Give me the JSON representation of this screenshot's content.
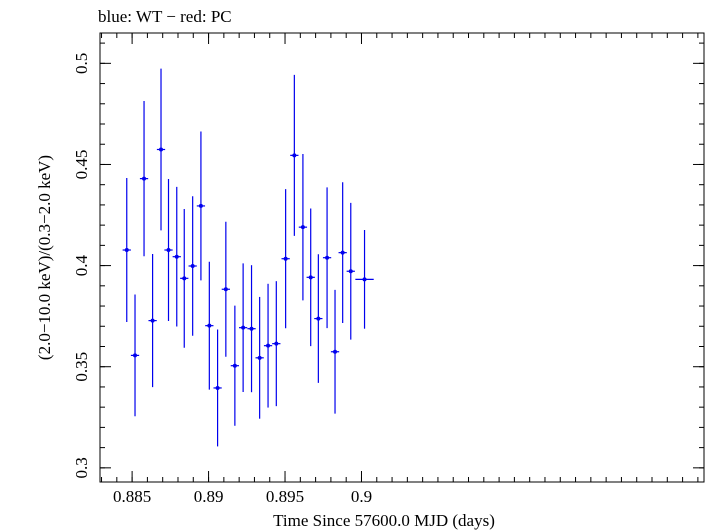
{
  "chart_data": {
    "type": "scatter",
    "title": "blue: WT − red: PC",
    "xlabel": "Time Since 57600.0 MJD (days)",
    "ylabel": "(2.0−10.0 keV)/(0.3−2.0 keV)",
    "xlim": [
      0.8829,
      0.9224
    ],
    "ylim": [
      0.293,
      0.515
    ],
    "xticks": [
      {
        "value": 0.885,
        "label": "0.885"
      },
      {
        "value": 0.89,
        "label": "0.89"
      },
      {
        "value": 0.895,
        "label": "0.895"
      },
      {
        "value": 0.9,
        "label": "0.9"
      }
    ],
    "yticks": [
      {
        "value": 0.3,
        "label": "0.3"
      },
      {
        "value": 0.35,
        "label": "0.35"
      },
      {
        "value": 0.4,
        "label": "0.4"
      },
      {
        "value": 0.45,
        "label": "0.45"
      },
      {
        "value": 0.5,
        "label": "0.5"
      }
    ],
    "x_minor_step": 0.001,
    "y_minor_step": 0.01,
    "grid": false,
    "series": [
      {
        "name": "WT",
        "color": "#0000ee",
        "points": [
          {
            "x": 0.88465,
            "xerr": 0.00027,
            "y": 0.4077,
            "yerr": 0.0356
          },
          {
            "x": 0.88519,
            "xerr": 0.00027,
            "y": 0.3556,
            "yerr": 0.0301
          },
          {
            "x": 0.88578,
            "xerr": 0.00027,
            "y": 0.443,
            "yerr": 0.0384
          },
          {
            "x": 0.88634,
            "xerr": 0.00027,
            "y": 0.3728,
            "yerr": 0.0329
          },
          {
            "x": 0.88689,
            "xerr": 0.00027,
            "y": 0.4574,
            "yerr": 0.04
          },
          {
            "x": 0.88738,
            "xerr": 0.00027,
            "y": 0.4077,
            "yerr": 0.0351
          },
          {
            "x": 0.88792,
            "xerr": 0.00027,
            "y": 0.4044,
            "yerr": 0.0345
          },
          {
            "x": 0.88841,
            "xerr": 0.00027,
            "y": 0.3937,
            "yerr": 0.0343
          },
          {
            "x": 0.88896,
            "xerr": 0.00027,
            "y": 0.3998,
            "yerr": 0.0345
          },
          {
            "x": 0.8895,
            "xerr": 0.00027,
            "y": 0.4295,
            "yerr": 0.0368
          },
          {
            "x": 0.89005,
            "xerr": 0.00027,
            "y": 0.3703,
            "yerr": 0.0316
          },
          {
            "x": 0.89059,
            "xerr": 0.00027,
            "y": 0.3395,
            "yerr": 0.0289
          },
          {
            "x": 0.89113,
            "xerr": 0.00027,
            "y": 0.3883,
            "yerr": 0.0334
          },
          {
            "x": 0.89172,
            "xerr": 0.00027,
            "y": 0.3505,
            "yerr": 0.0297
          },
          {
            "x": 0.89226,
            "xerr": 0.00027,
            "y": 0.3693,
            "yerr": 0.0318
          },
          {
            "x": 0.89281,
            "xerr": 0.00027,
            "y": 0.3688,
            "yerr": 0.0314
          },
          {
            "x": 0.89334,
            "xerr": 0.00027,
            "y": 0.3544,
            "yerr": 0.0301
          },
          {
            "x": 0.89389,
            "xerr": 0.00027,
            "y": 0.3604,
            "yerr": 0.0306
          },
          {
            "x": 0.89443,
            "xerr": 0.00027,
            "y": 0.3614,
            "yerr": 0.0309
          },
          {
            "x": 0.89504,
            "xerr": 0.00027,
            "y": 0.4034,
            "yerr": 0.0344
          },
          {
            "x": 0.89561,
            "xerr": 0.00027,
            "y": 0.4545,
            "yerr": 0.0398
          },
          {
            "x": 0.89617,
            "xerr": 0.00027,
            "y": 0.419,
            "yerr": 0.0362
          },
          {
            "x": 0.89668,
            "xerr": 0.00027,
            "y": 0.3942,
            "yerr": 0.034
          },
          {
            "x": 0.89718,
            "xerr": 0.00027,
            "y": 0.3738,
            "yerr": 0.0318
          },
          {
            "x": 0.89775,
            "xerr": 0.00027,
            "y": 0.4039,
            "yerr": 0.0348
          },
          {
            "x": 0.89827,
            "xerr": 0.00027,
            "y": 0.3574,
            "yerr": 0.0306
          },
          {
            "x": 0.89877,
            "xerr": 0.00027,
            "y": 0.4064,
            "yerr": 0.0348
          },
          {
            "x": 0.8993,
            "xerr": 0.00027,
            "y": 0.3972,
            "yerr": 0.0338
          },
          {
            "x": 0.9002,
            "xerr": 0.0006,
            "y": 0.3932,
            "yerr": 0.0244
          }
        ]
      }
    ]
  }
}
